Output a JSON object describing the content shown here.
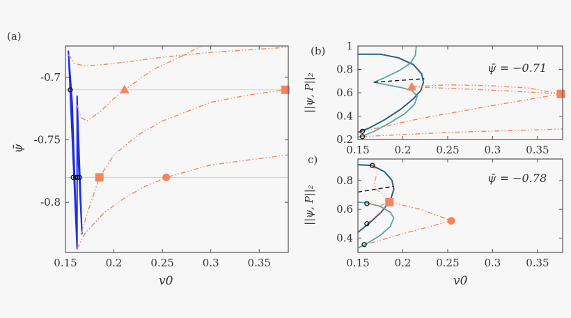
{
  "colors": {
    "orange": "#f5845c",
    "blue": "#1f2fe0",
    "darkblue": "#2c5d86",
    "teal": "#5aa5a4",
    "dashed": "#111111",
    "hline": "#cfcfcf",
    "frame": "#555555"
  },
  "chart_data": [
    {
      "id": "a",
      "panel_label": "(a)",
      "type": "line",
      "xlabel": "v0",
      "ylabel": "ψ̄",
      "xlim": [
        0.15,
        0.38
      ],
      "ylim": [
        -0.84,
        -0.675
      ],
      "xticks": [
        0.15,
        0.2,
        0.25,
        0.3,
        0.35
      ],
      "xticklabels": [
        "0.15",
        "0.2",
        "0.25",
        "0.3",
        "0.35"
      ],
      "yticks": [
        -0.7,
        -0.75,
        -0.8
      ],
      "yticklabels": [
        "-0.7",
        "-0.75",
        "-0.8"
      ],
      "hlines": [
        -0.71,
        -0.78
      ],
      "series": [
        {
          "name": "blue-branch",
          "color": "blue",
          "style": "solid",
          "width": 2,
          "points": [
            [
              0.153,
              -0.679
            ],
            [
              0.162,
              -0.837
            ],
            [
              0.157,
              -0.745
            ],
            [
              0.153,
              -0.679
            ],
            [
              0.157,
              -0.72
            ],
            [
              0.162,
              -0.837
            ],
            [
              0.162,
              -0.715
            ],
            [
              0.167,
              -0.825
            ],
            [
              0.1635,
              -0.77
            ],
            [
              0.162,
              -0.715
            ]
          ]
        },
        {
          "name": "orange-branch-1",
          "color": "orange",
          "style": "dashdotdot",
          "width": 1.4,
          "points": [
            [
              0.153,
              -0.682
            ],
            [
              0.16,
              -0.689
            ],
            [
              0.17,
              -0.691
            ],
            [
              0.2,
              -0.689
            ],
            [
              0.25,
              -0.684
            ],
            [
              0.3,
              -0.68
            ],
            [
              0.38,
              -0.676
            ]
          ]
        },
        {
          "name": "orange-branch-2",
          "color": "orange",
          "style": "dashdotdot",
          "width": 1.4,
          "points": [
            [
              0.162,
              -0.722
            ],
            [
              0.166,
              -0.732
            ],
            [
              0.172,
              -0.735
            ],
            [
              0.185,
              -0.728
            ],
            [
              0.2,
              -0.717
            ],
            [
              0.211,
              -0.71
            ],
            [
              0.24,
              -0.694
            ],
            [
              0.27,
              -0.683
            ],
            [
              0.29,
              -0.675
            ]
          ]
        },
        {
          "name": "orange-branch-3",
          "color": "orange",
          "style": "dashdotdot",
          "width": 1.4,
          "points": [
            [
              0.166,
              -0.826
            ],
            [
              0.172,
              -0.81
            ],
            [
              0.185,
              -0.78
            ],
            [
              0.2,
              -0.762
            ],
            [
              0.225,
              -0.746
            ],
            [
              0.25,
              -0.735
            ],
            [
              0.3,
              -0.72
            ],
            [
              0.34,
              -0.714
            ],
            [
              0.377,
              -0.71
            ]
          ]
        },
        {
          "name": "orange-branch-4",
          "color": "orange",
          "style": "dashdotdot",
          "width": 1.4,
          "points": [
            [
              0.162,
              -0.837
            ],
            [
              0.17,
              -0.825
            ],
            [
              0.19,
              -0.808
            ],
            [
              0.21,
              -0.797
            ],
            [
              0.23,
              -0.788
            ],
            [
              0.254,
              -0.78
            ],
            [
              0.3,
              -0.77
            ],
            [
              0.38,
              -0.762
            ]
          ]
        }
      ],
      "markers": [
        {
          "shape": "triangle",
          "color": "orange",
          "x": 0.211,
          "y": -0.71
        },
        {
          "shape": "square",
          "color": "orange",
          "x": 0.377,
          "y": -0.71
        },
        {
          "shape": "square",
          "color": "orange",
          "x": 0.185,
          "y": -0.78
        },
        {
          "shape": "circle",
          "color": "orange",
          "x": 0.254,
          "y": -0.78
        },
        {
          "shape": "ring",
          "color": "dashed",
          "x": 0.155,
          "y": -0.71
        },
        {
          "shape": "ring",
          "color": "dashed",
          "x": 0.158,
          "y": -0.78
        },
        {
          "shape": "ring",
          "color": "dashed",
          "x": 0.1605,
          "y": -0.78
        },
        {
          "shape": "ring",
          "color": "dashed",
          "x": 0.1625,
          "y": -0.78
        },
        {
          "shape": "ring",
          "color": "dashed",
          "x": 0.1645,
          "y": -0.78
        }
      ]
    },
    {
      "id": "b",
      "panel_label": "(b)",
      "type": "line",
      "xlabel": "",
      "ylabel": "||ψ, P||₂",
      "annotation": "ψ̄ = −0.71",
      "xlim": [
        0.15,
        0.378
      ],
      "ylim": [
        0.2,
        1.0
      ],
      "xticks": [
        0.15,
        0.2,
        0.25,
        0.3,
        0.35
      ],
      "xticklabels": [
        "0.15",
        "0.2",
        "0.25",
        "0.3",
        "0.35"
      ],
      "yticks": [
        0.2,
        0.4,
        0.6,
        0.8,
        1.0
      ],
      "yticklabels": [
        "0.2",
        "0.4",
        "0.6",
        "0.8",
        "1"
      ],
      "hlines": [],
      "series": [
        {
          "name": "dark-blue-branch",
          "color": "darkblue",
          "style": "solid",
          "width": 2,
          "points": [
            [
              0.15,
              0.93
            ],
            [
              0.175,
              0.93
            ],
            [
              0.195,
              0.9
            ],
            [
              0.212,
              0.84
            ],
            [
              0.221,
              0.76
            ],
            [
              0.223,
              0.69
            ],
            [
              0.22,
              0.62
            ],
            [
              0.212,
              0.55
            ],
            [
              0.198,
              0.46
            ],
            [
              0.18,
              0.37
            ],
            [
              0.163,
              0.3
            ],
            [
              0.155,
              0.275
            ],
            [
              0.15,
              0.26
            ]
          ]
        },
        {
          "name": "teal-branch",
          "color": "teal",
          "style": "solid",
          "width": 1.8,
          "points": [
            [
              0.215,
              1.0
            ],
            [
              0.214,
              0.92
            ],
            [
              0.208,
              0.85
            ],
            [
              0.196,
              0.79
            ],
            [
              0.18,
              0.73
            ],
            [
              0.168,
              0.69
            ],
            [
              0.18,
              0.67
            ],
            [
              0.198,
              0.645
            ],
            [
              0.21,
              0.62
            ],
            [
              0.216,
              0.57
            ],
            [
              0.213,
              0.5
            ],
            [
              0.202,
              0.42
            ],
            [
              0.185,
              0.34
            ],
            [
              0.168,
              0.27
            ],
            [
              0.155,
              0.228
            ],
            [
              0.15,
              0.22
            ]
          ]
        },
        {
          "name": "unstable-dashed",
          "color": "dashed",
          "style": "dashed",
          "width": 1.4,
          "points": [
            [
              0.168,
              0.69
            ],
            [
              0.224,
              0.72
            ]
          ]
        },
        {
          "name": "orange-upper-arc",
          "color": "orange",
          "style": "dashdotdot",
          "width": 1.4,
          "points": [
            [
              0.21,
              0.65
            ],
            [
              0.25,
              0.668
            ],
            [
              0.3,
              0.66
            ],
            [
              0.34,
              0.64
            ],
            [
              0.376,
              0.59
            ]
          ]
        },
        {
          "name": "orange-lower-arc",
          "color": "orange",
          "style": "dashdotdot",
          "width": 1.4,
          "points": [
            [
              0.21,
              0.65
            ],
            [
              0.26,
              0.635
            ],
            [
              0.32,
              0.615
            ],
            [
              0.376,
              0.59
            ]
          ]
        },
        {
          "name": "orange-descent",
          "color": "orange",
          "style": "dashdotdot",
          "width": 1.4,
          "points": [
            [
              0.376,
              0.59
            ],
            [
              0.3,
              0.49
            ],
            [
              0.22,
              0.38
            ],
            [
              0.155,
              0.27
            ]
          ]
        },
        {
          "name": "orange-bottom",
          "color": "orange",
          "style": "dashdotdot",
          "width": 1.4,
          "points": [
            [
              0.155,
              0.225
            ],
            [
              0.25,
              0.26
            ],
            [
              0.38,
              0.29
            ]
          ]
        }
      ],
      "markers": [
        {
          "shape": "triangle",
          "color": "orange",
          "x": 0.21,
          "y": 0.65
        },
        {
          "shape": "square",
          "color": "orange",
          "x": 0.376,
          "y": 0.59
        },
        {
          "shape": "ring",
          "color": "dashed",
          "x": 0.155,
          "y": 0.27
        },
        {
          "shape": "ring",
          "color": "dashed",
          "x": 0.155,
          "y": 0.225
        }
      ]
    },
    {
      "id": "c",
      "panel_label": "c)",
      "type": "line",
      "xlabel": "v0",
      "ylabel": "||ψ, P||₂",
      "annotation": "ψ̄ = −0.78",
      "xlim": [
        0.15,
        0.378
      ],
      "ylim": [
        0.3,
        0.95
      ],
      "xticks": [
        0.15,
        0.2,
        0.25,
        0.3,
        0.35
      ],
      "xticklabels": [
        "0.15",
        "0.2",
        "0.25",
        "0.3",
        "0.35"
      ],
      "yticks": [
        0.4,
        0.6,
        0.8
      ],
      "yticklabels": [
        "0.4",
        "0.6",
        "0.8"
      ],
      "hlines": [],
      "series": [
        {
          "name": "dark-blue-branch",
          "color": "darkblue",
          "style": "solid",
          "width": 2,
          "points": [
            [
              0.15,
              0.91
            ],
            [
              0.166,
              0.905
            ],
            [
              0.18,
              0.86
            ],
            [
              0.188,
              0.8
            ],
            [
              0.19,
              0.74
            ],
            [
              0.186,
              0.66
            ],
            [
              0.176,
              0.58
            ],
            [
              0.162,
              0.5
            ],
            [
              0.15,
              0.44
            ]
          ]
        },
        {
          "name": "teal-branch",
          "color": "teal",
          "style": "solid",
          "width": 1.8,
          "points": [
            [
              0.15,
              0.65
            ],
            [
              0.16,
              0.645
            ],
            [
              0.175,
              0.62
            ],
            [
              0.186,
              0.58
            ],
            [
              0.19,
              0.54
            ],
            [
              0.186,
              0.48
            ],
            [
              0.175,
              0.42
            ],
            [
              0.162,
              0.37
            ],
            [
              0.15,
              0.33
            ]
          ]
        },
        {
          "name": "unstable-dashed",
          "color": "dashed",
          "style": "dashed",
          "width": 1.4,
          "points": [
            [
              0.15,
              0.72
            ],
            [
              0.19,
              0.76
            ]
          ]
        },
        {
          "name": "orange-upper",
          "color": "orange",
          "style": "dashdotdot",
          "width": 1.2,
          "points": [
            [
              0.166,
              0.905
            ],
            [
              0.172,
              0.86
            ],
            [
              0.168,
              0.78
            ],
            [
              0.17,
              0.74
            ],
            [
              0.177,
              0.71
            ],
            [
              0.185,
              0.65
            ]
          ]
        },
        {
          "name": "orange-mid",
          "color": "orange",
          "style": "dashdotdot",
          "width": 1.2,
          "points": [
            [
              0.16,
              0.64
            ],
            [
              0.175,
              0.625
            ],
            [
              0.185,
              0.65
            ]
          ]
        },
        {
          "name": "orange-mid-2",
          "color": "orange",
          "style": "dashdotdot",
          "width": 1.2,
          "points": [
            [
              0.16,
              0.5
            ],
            [
              0.175,
              0.58
            ],
            [
              0.185,
              0.65
            ]
          ]
        },
        {
          "name": "orange-to-circle",
          "color": "orange",
          "style": "dashdotdot",
          "width": 1.4,
          "points": [
            [
              0.185,
              0.65
            ],
            [
              0.22,
              0.6
            ],
            [
              0.254,
              0.52
            ]
          ]
        },
        {
          "name": "orange-return",
          "color": "orange",
          "style": "dashdotdot",
          "width": 1.4,
          "points": [
            [
              0.254,
              0.52
            ],
            [
              0.2,
              0.43
            ],
            [
              0.158,
              0.355
            ]
          ]
        }
      ],
      "markers": [
        {
          "shape": "square",
          "color": "orange",
          "x": 0.185,
          "y": 0.65
        },
        {
          "shape": "circle",
          "color": "orange",
          "x": 0.254,
          "y": 0.52
        },
        {
          "shape": "ring",
          "color": "dashed",
          "x": 0.166,
          "y": 0.905
        },
        {
          "shape": "ring",
          "color": "dashed",
          "x": 0.16,
          "y": 0.64
        },
        {
          "shape": "ring",
          "color": "dashed",
          "x": 0.16,
          "y": 0.5
        },
        {
          "shape": "ring",
          "color": "dashed",
          "x": 0.157,
          "y": 0.355
        }
      ]
    }
  ]
}
